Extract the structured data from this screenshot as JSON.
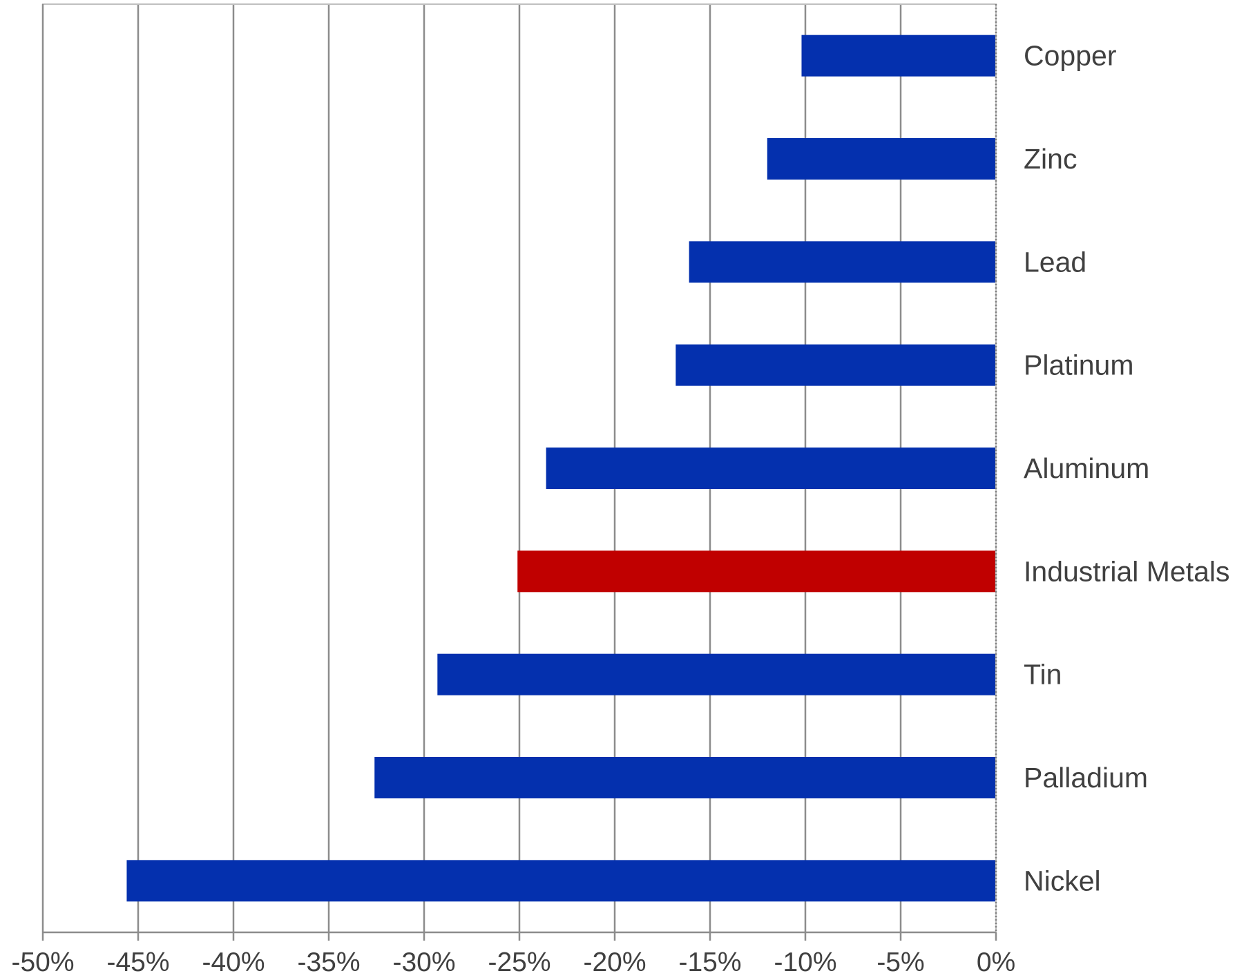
{
  "chart_data": {
    "type": "bar",
    "orientation": "horizontal",
    "categories": [
      "Copper",
      "Zinc",
      "Lead",
      "Platinum",
      "Aluminum",
      "Industrial Metals",
      "Tin",
      "Palladium",
      "Nickel"
    ],
    "values": [
      -10.2,
      -12.0,
      -16.1,
      -16.8,
      -23.6,
      -25.1,
      -29.3,
      -32.6,
      -45.6
    ],
    "bar_colors": [
      "#0430AE",
      "#0430AE",
      "#0430AE",
      "#0430AE",
      "#0430AE",
      "#C00000",
      "#0430AE",
      "#0430AE",
      "#0430AE"
    ],
    "xlim": [
      -50,
      0
    ],
    "x_ticks": [
      -50,
      -45,
      -40,
      -35,
      -30,
      -25,
      -20,
      -15,
      -10,
      -5,
      0
    ],
    "x_tick_labels": [
      "-50%",
      "-45%",
      "-40%",
      "-35%",
      "-30%",
      "-25%",
      "-20%",
      "-15%",
      "-10%",
      "-5%",
      "0%"
    ],
    "category_labels_side": "right",
    "grid": "vertical",
    "title": "",
    "xlabel": "",
    "ylabel": ""
  }
}
